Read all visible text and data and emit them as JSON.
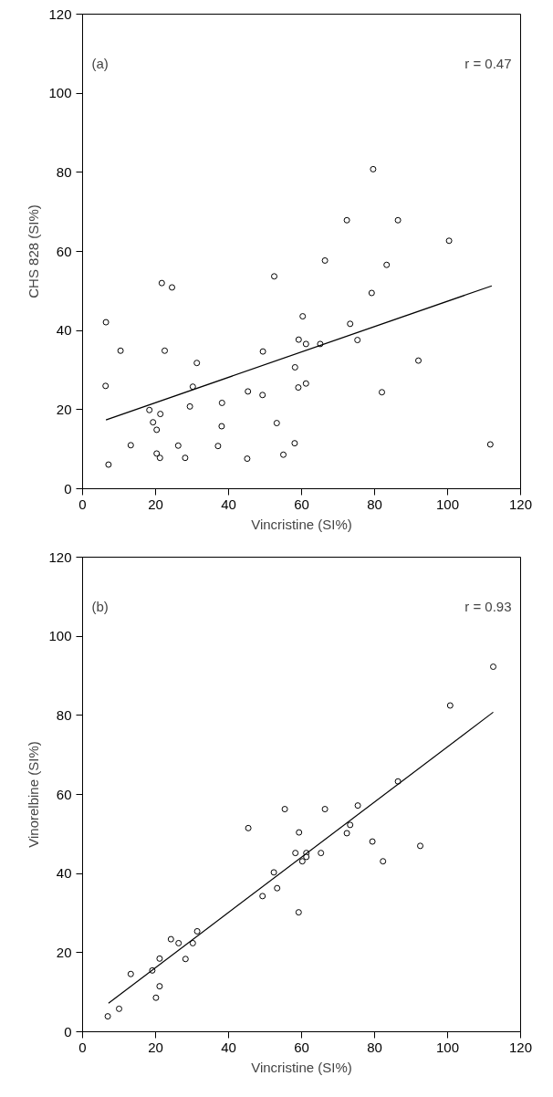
{
  "chart_data": [
    {
      "type": "scatter",
      "xlabel": "Vincristine (SI%)",
      "ylabel": "CHS 828 (SI%)",
      "annotations": [
        "(a)",
        "r = 0.47"
      ],
      "xlim": [
        0,
        120
      ],
      "ylim": [
        0,
        120
      ],
      "xticks": [
        0,
        20,
        40,
        60,
        80,
        100,
        120
      ],
      "yticks": [
        0,
        20,
        40,
        60,
        80,
        100,
        120
      ],
      "grid": false,
      "series": [
        {
          "marker": "circle",
          "color": "#000000",
          "x": [
            6.4,
            10.4,
            6.3,
            7.1,
            13.2,
            21.7,
            24.5,
            22.5,
            31.3,
            30.2,
            29.4,
            18.3,
            21.3,
            19.3,
            20.3,
            20.3,
            21.2,
            26.2,
            28.1,
            37.1,
            38.2,
            38.1,
            45.3,
            45.1,
            49.3,
            49.4,
            52.5,
            53.2,
            55.0,
            58.1,
            58.2,
            59.2,
            59.1,
            60.3,
            61.2,
            61.2,
            65.1,
            73.3,
            75.3,
            79.2,
            82.0,
            92.0,
            111.7,
            79.6,
            72.4,
            86.4,
            100.4,
            66.4,
            83.3
          ],
          "values": [
            42.1,
            34.9,
            26.0,
            6.1,
            11.0,
            52.0,
            50.9,
            34.9,
            31.8,
            25.8,
            20.8,
            19.9,
            18.9,
            16.8,
            14.9,
            8.9,
            7.8,
            10.9,
            7.8,
            10.8,
            21.7,
            15.8,
            24.6,
            7.6,
            23.7,
            34.7,
            53.7,
            16.6,
            8.6,
            11.5,
            30.7,
            37.7,
            25.6,
            43.6,
            36.6,
            26.6,
            36.6,
            41.7,
            37.6,
            49.5,
            24.4,
            32.4,
            11.2,
            80.8,
            67.9,
            67.9,
            62.7,
            57.7,
            56.6
          ]
        },
        {
          "type": "line",
          "marker": "none",
          "color": "#000000",
          "x": [
            6.4,
            112.1
          ],
          "values": [
            17.4,
            51.3
          ]
        }
      ]
    },
    {
      "type": "scatter",
      "xlabel": "Vincristine (SI%)",
      "ylabel": "Vinorelbine (SI%)",
      "annotations": [
        "(b)",
        "r = 0.93"
      ],
      "xlim": [
        0,
        120
      ],
      "ylim": [
        0,
        120
      ],
      "xticks": [
        0,
        20,
        40,
        60,
        80,
        100,
        120
      ],
      "yticks": [
        0,
        20,
        40,
        60,
        80,
        100,
        120
      ],
      "grid": false,
      "series": [
        {
          "marker": "circle",
          "color": "#000000",
          "x": [
            6.9,
            10.0,
            13.2,
            19.1,
            21.1,
            21.1,
            20.1,
            24.2,
            26.3,
            28.2,
            30.2,
            31.4,
            45.4,
            49.3,
            52.4,
            53.3,
            55.4,
            58.3,
            59.3,
            59.2,
            60.2,
            61.3,
            61.3,
            65.3,
            66.4,
            72.4,
            73.3,
            75.4,
            79.4,
            82.3,
            92.5,
            86.4,
            100.7,
            112.5
          ],
          "values": [
            3.9,
            5.8,
            14.6,
            15.5,
            18.5,
            11.5,
            8.6,
            23.4,
            22.4,
            18.4,
            22.4,
            25.4,
            51.5,
            34.3,
            40.3,
            36.3,
            56.3,
            45.2,
            50.4,
            30.2,
            43.1,
            45.2,
            44.2,
            45.2,
            56.3,
            50.2,
            52.3,
            57.2,
            48.1,
            43.1,
            47.0,
            63.3,
            82.5,
            92.3
          ]
        },
        {
          "type": "line",
          "marker": "none",
          "color": "#000000",
          "x": [
            7.1,
            112.5
          ],
          "values": [
            7.2,
            80.8
          ]
        }
      ]
    }
  ]
}
